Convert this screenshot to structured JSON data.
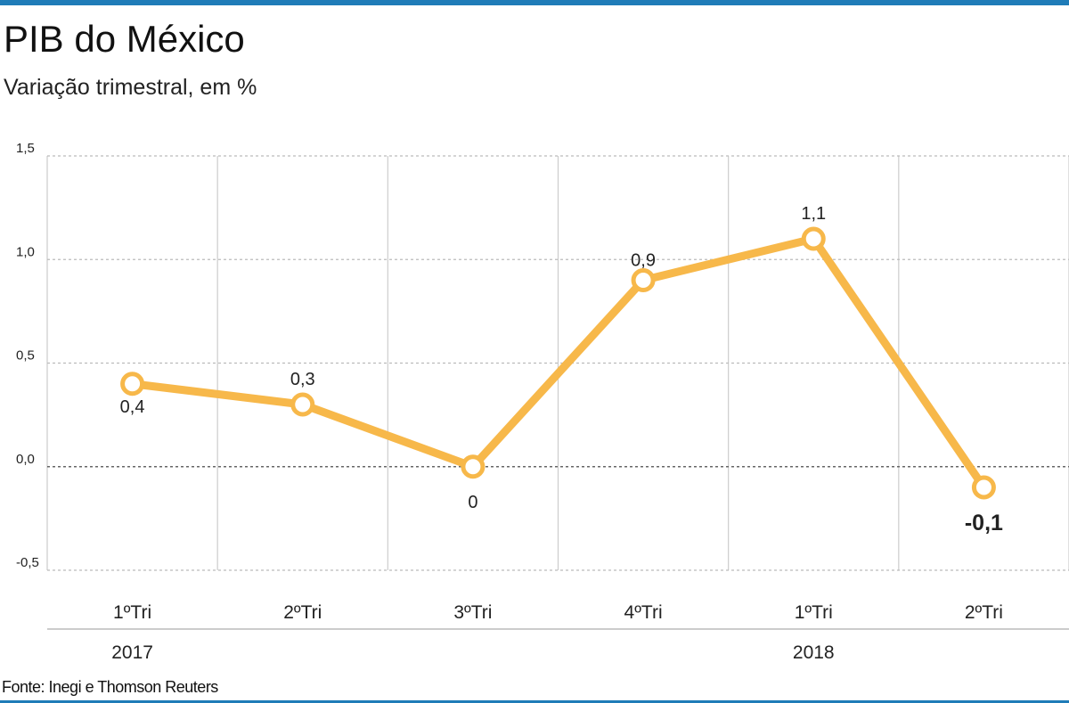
{
  "title": "PIB do México",
  "subtitle": "Variação trimestral, em %",
  "source": "Fonte: Inegi e Thomson Reuters",
  "colors": {
    "line": "#f7b84a",
    "accent_bar": "#1f7cb8",
    "grid": "#cccccc"
  },
  "chart_data": {
    "type": "line",
    "title": "PIB do México",
    "subtitle": "Variação trimestral, em %",
    "categories": [
      "1ºTri",
      "2ºTri",
      "3ºTri",
      "4ºTri",
      "1ºTri",
      "2ºTri"
    ],
    "year_labels": [
      {
        "label": "2017",
        "category_index": 0
      },
      {
        "label": "2018",
        "category_index": 4
      }
    ],
    "values": [
      0.4,
      0.3,
      0,
      0.9,
      1.1,
      -0.1
    ],
    "data_labels": [
      "0,4",
      "0,3",
      "0",
      "0,9",
      "1,1",
      "-0,1"
    ],
    "yticks": [
      1.5,
      1.0,
      0.5,
      0.0,
      -0.5
    ],
    "ytick_labels": [
      "1,5",
      "1,0",
      "0,5",
      "0,0",
      "-0,5"
    ],
    "ylim": [
      -0.5,
      1.5
    ],
    "grid": true,
    "xlabel": "",
    "ylabel": ""
  }
}
